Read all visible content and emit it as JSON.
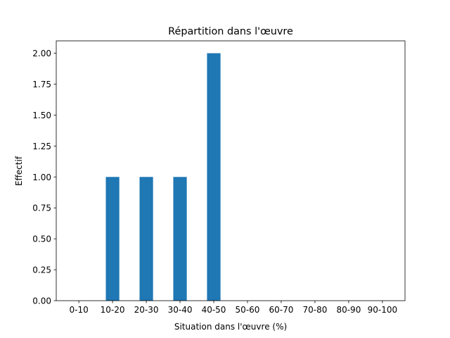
{
  "chart_data": {
    "type": "bar",
    "title": "Répartition dans l'œuvre",
    "xlabel": "Situation dans l'œuvre (%)",
    "ylabel": "Effectif",
    "categories": [
      "0-10",
      "10-20",
      "20-30",
      "30-40",
      "40-50",
      "50-60",
      "60-70",
      "70-80",
      "80-90",
      "90-100"
    ],
    "values": [
      0,
      1,
      1,
      1,
      2,
      0,
      0,
      0,
      0,
      0
    ],
    "ylim": [
      0,
      2.1
    ],
    "yticks": [
      "0.00",
      "0.25",
      "0.50",
      "0.75",
      "1.00",
      "1.25",
      "1.50",
      "1.75",
      "2.00"
    ],
    "grid": false,
    "bar_color": "#1f77b4"
  }
}
